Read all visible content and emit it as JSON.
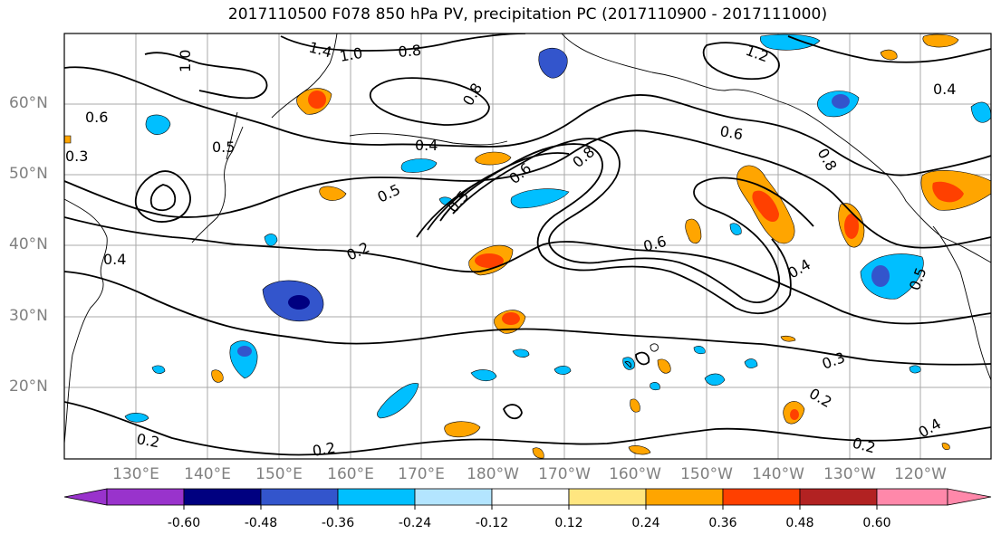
{
  "title": "2017110500 F078 850 hPa PV, precipitation PC (2017110900 - 2017111000)",
  "map": {
    "lat_labels": [
      "60°N",
      "50°N",
      "40°N",
      "30°N",
      "20°N"
    ],
    "lon_labels": [
      "130°E",
      "140°E",
      "150°E",
      "160°E",
      "170°E",
      "180°W",
      "170°W",
      "160°W",
      "150°W",
      "140°W",
      "130°W",
      "120°W"
    ],
    "pv_contour_labels": [
      "1.4",
      "1.0",
      "0.8",
      "1.0",
      "0.6",
      "0.5",
      "0.3",
      "0.4",
      "0.5",
      "0.4",
      "0.5",
      "0.6",
      "0.8",
      "0.2",
      "0.6",
      "0.4",
      "0.3",
      "0.2",
      "0.2",
      "0.2",
      "0.2",
      "0.6",
      "0.8",
      "0.4",
      "0.5",
      "0.8",
      "1.2",
      "0.4"
    ]
  },
  "colorbar": {
    "tick_labels": [
      "-0.60",
      "-0.48",
      "-0.36",
      "-0.24",
      "-0.12",
      "0.12",
      "0.24",
      "0.36",
      "0.48",
      "0.60"
    ],
    "colors": [
      "#9933cc",
      "#000080",
      "#3355cc",
      "#00bfff",
      "#b3e5ff",
      "#ffffff",
      "#ffe680",
      "#ffa500",
      "#ff4000",
      "#b22222",
      "#ff88aa"
    ]
  }
}
